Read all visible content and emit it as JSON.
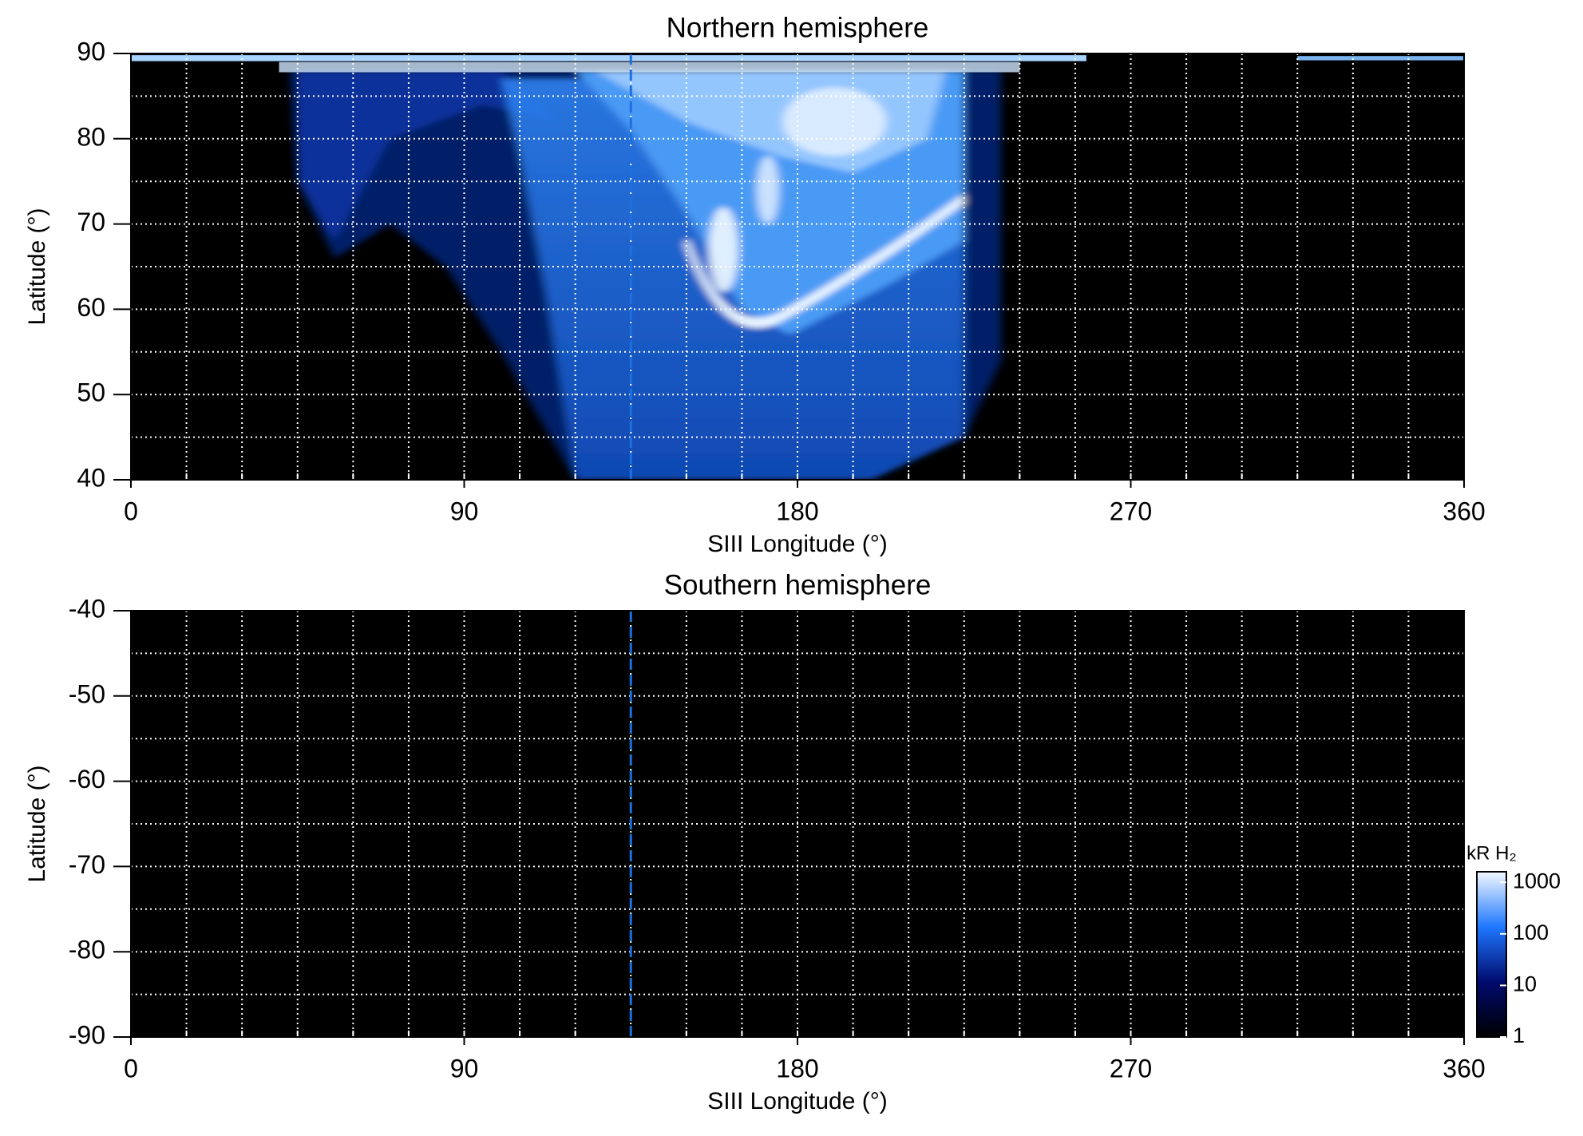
{
  "chart_data": [
    {
      "type": "heatmap",
      "title": "Northern hemisphere",
      "xlabel": "SIII Longitude (°)",
      "ylabel": "Latitude (°)",
      "xlim": [
        0,
        360
      ],
      "xticks": [
        0,
        90,
        180,
        270,
        360
      ],
      "ylim": [
        40,
        90
      ],
      "yticks": [
        40,
        50,
        60,
        70,
        80,
        90
      ],
      "xgrid": [
        15,
        30,
        45,
        60,
        75,
        90,
        105,
        120,
        135,
        150,
        165,
        180,
        195,
        210,
        225,
        240,
        255,
        270,
        285,
        300,
        315,
        330,
        345
      ],
      "ygrid": [
        45,
        50,
        55,
        60,
        65,
        70,
        75,
        80,
        85
      ],
      "grid": true,
      "marker_longitude": 135,
      "marker_color": "#1e6fe0"
    },
    {
      "type": "heatmap",
      "title": "Southern hemisphere",
      "xlabel": "SIII Longitude (°)",
      "ylabel": "Latitude (°)",
      "xlim": [
        0,
        360
      ],
      "xticks": [
        0,
        90,
        180,
        270,
        360
      ],
      "ylim": [
        -90,
        -40
      ],
      "yticks": [
        -40,
        -50,
        -60,
        -70,
        -80,
        -90
      ],
      "xgrid": [
        15,
        30,
        45,
        60,
        75,
        90,
        105,
        120,
        135,
        150,
        165,
        180,
        195,
        210,
        225,
        240,
        255,
        270,
        285,
        300,
        315,
        330,
        345
      ],
      "ygrid": [
        -45,
        -50,
        -55,
        -60,
        -65,
        -70,
        -75,
        -80,
        -85
      ],
      "grid": true,
      "marker_longitude": 135,
      "marker_color": "#1e6fe0",
      "colorbar": {
        "label": "kR H₂",
        "log": true,
        "lim": [
          1,
          1600
        ],
        "ticks": [
          1,
          10,
          100,
          1000
        ],
        "colors": [
          "#000000",
          "#000a6e",
          "#1f78ff",
          "#f2f8ff"
        ]
      }
    }
  ]
}
